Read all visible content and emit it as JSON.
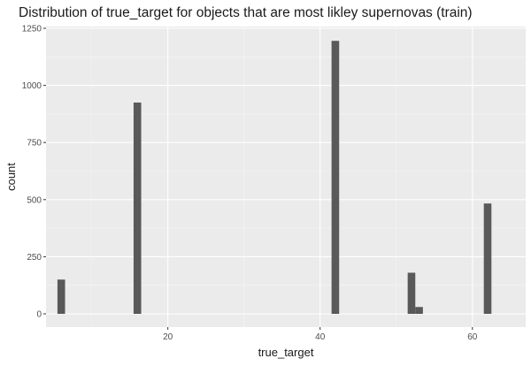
{
  "chart_data": {
    "type": "bar",
    "title": "Distribution of true_target for objects that are most likley supernovas (train)",
    "xlabel": "true_target",
    "ylabel": "count",
    "xlim": [
      4,
      67
    ],
    "ylim": [
      0,
      1250
    ],
    "x_ticks": [
      20,
      40,
      60
    ],
    "x_tick_labels": [
      "20",
      "40",
      "60"
    ],
    "y_ticks": [
      0,
      250,
      500,
      750,
      1000,
      1250
    ],
    "y_tick_labels": [
      "0",
      "250",
      "500",
      "750",
      "1000",
      "1250"
    ],
    "bin_width": 1,
    "x": [
      6,
      16,
      42,
      52,
      53,
      62
    ],
    "values": [
      150,
      925,
      1195,
      180,
      30,
      483
    ],
    "grid": true,
    "colors": {
      "bar": "#595959",
      "panel": "#ebebeb",
      "grid_major": "#ffffff",
      "grid_minor": "#f5f5f5"
    }
  }
}
